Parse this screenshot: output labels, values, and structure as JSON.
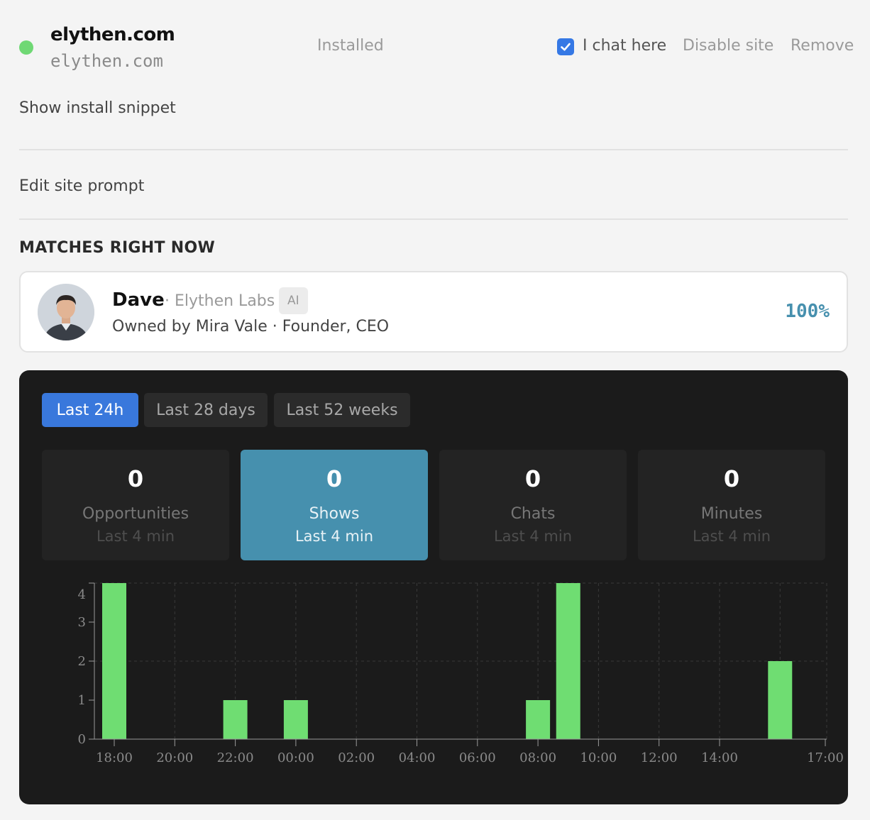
{
  "site": {
    "name": "elythen.com",
    "domain": "elythen.com",
    "status_text": "Installed",
    "status_color": "#6fd874",
    "chat_here_label": "I chat here",
    "chat_here_checked": true,
    "disable_label": "Disable site",
    "remove_label": "Remove"
  },
  "links": {
    "install_snippet": "Show install snippet",
    "edit_prompt": "Edit site prompt"
  },
  "matches": {
    "title": "MATCHES RIGHT NOW",
    "items": [
      {
        "name": "Dave",
        "company": "· Elythen Labs",
        "badge": "AI",
        "owner": "Owned by Mira Vale · Founder, CEO",
        "score": "100%",
        "avatar_icon": "person-avatar"
      }
    ]
  },
  "stats": {
    "tabs": [
      {
        "label": "Last 24h",
        "active": true
      },
      {
        "label": "Last 28 days",
        "active": false
      },
      {
        "label": "Last 52 weeks",
        "active": false
      }
    ],
    "cards": [
      {
        "value": "0",
        "label": "Opportunities",
        "sub": "Last 4 min",
        "active": false
      },
      {
        "value": "0",
        "label": "Shows",
        "sub": "Last 4 min",
        "active": true
      },
      {
        "value": "0",
        "label": "Chats",
        "sub": "Last 4 min",
        "active": false
      },
      {
        "value": "0",
        "label": "Minutes",
        "sub": "Last 4 min",
        "active": false
      }
    ]
  },
  "chart_data": {
    "type": "bar",
    "title": "",
    "xlabel": "",
    "ylabel": "",
    "ylim": [
      0,
      4
    ],
    "y_ticks": [
      0,
      1,
      2,
      3,
      4
    ],
    "x_tick_labels": [
      "18:00",
      "20:00",
      "22:00",
      "00:00",
      "02:00",
      "04:00",
      "06:00",
      "08:00",
      "10:00",
      "12:00",
      "14:00",
      "17:00"
    ],
    "bars": [
      {
        "time": "18:00",
        "value": 4
      },
      {
        "time": "22:00",
        "value": 1
      },
      {
        "time": "00:00",
        "value": 1
      },
      {
        "time": "08:00",
        "value": 1
      },
      {
        "time": "09:00",
        "value": 4
      },
      {
        "time": "16:00",
        "value": 2
      }
    ],
    "bar_color": "#6fdd72",
    "grid": true
  }
}
